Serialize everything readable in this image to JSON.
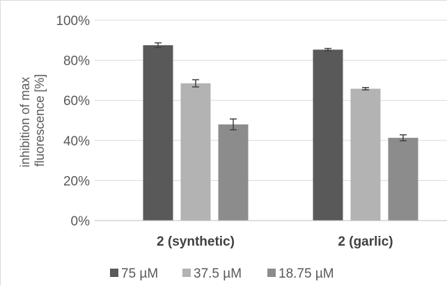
{
  "chart_data": {
    "type": "bar",
    "categories": [
      "2 (synthetic)",
      "2 (garlic)"
    ],
    "series": [
      {
        "name": "75 µM",
        "values": [
          87.5,
          85.3
        ],
        "errors": [
          1.2,
          0.6
        ],
        "color": "#595959"
      },
      {
        "name": "37.5 µM",
        "values": [
          68.5,
          65.8
        ],
        "errors": [
          1.8,
          0.6
        ],
        "color": "#b3b3b3"
      },
      {
        "name": "18.75 µM",
        "values": [
          48.0,
          41.3
        ],
        "errors": [
          2.7,
          1.5
        ],
        "color": "#8c8c8c"
      }
    ],
    "ylabel": "inhibition of max fluorescence [%]",
    "ylabel_lines": [
      "inhibition of max",
      "fluorescence [%]"
    ],
    "y_ticks": [
      "0%",
      "20%",
      "40%",
      "60%",
      "80%",
      "100%"
    ],
    "ylim": [
      0,
      100
    ],
    "grid": true,
    "legend_position": "bottom"
  }
}
